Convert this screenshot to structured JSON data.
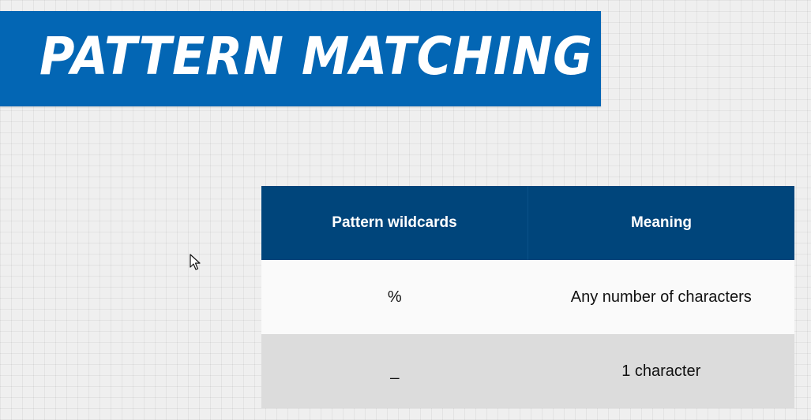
{
  "banner": {
    "title": "PATTERN MATCHING",
    "color": "#0366b4"
  },
  "table": {
    "header_color": "#00457b",
    "columns": [
      "Pattern wildcards",
      "Meaning"
    ],
    "rows": [
      {
        "wildcard": "%",
        "meaning": "Any number of characters"
      },
      {
        "wildcard": "_",
        "meaning": "1 character"
      }
    ]
  },
  "cursor": {
    "icon": "mouse-pointer-icon"
  }
}
